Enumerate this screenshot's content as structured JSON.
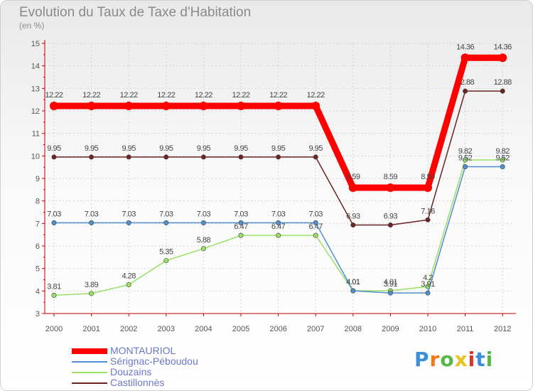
{
  "title": "Evolution du Taux de Taxe d'Habitation",
  "subtitle": "(en %)",
  "logo_text": "Proxiti",
  "chart_data": {
    "type": "line",
    "title": "Evolution du Taux de Taxe d'Habitation",
    "ylabel": "(en %)",
    "xlabel": "",
    "x": [
      "2000",
      "2001",
      "2002",
      "2003",
      "2004",
      "2005",
      "2006",
      "2007",
      "2008",
      "2009",
      "2010",
      "2011",
      "2012"
    ],
    "ylim": [
      3,
      15
    ],
    "yticks": [
      "3",
      "4",
      "5",
      "6",
      "7",
      "8",
      "9",
      "10",
      "11",
      "12",
      "13",
      "14",
      "15"
    ],
    "series": [
      {
        "name": "MONTAURIOL",
        "color": "#ff0000",
        "values": [
          12.22,
          12.22,
          12.22,
          12.22,
          12.22,
          12.22,
          12.22,
          12.22,
          8.59,
          8.59,
          8.59,
          14.36,
          14.36
        ],
        "labels": [
          "12.22",
          "12.22",
          "12.22",
          "12.22",
          "12.22",
          "12.22",
          "12.22",
          "12.22",
          "8.59",
          "8.59",
          "8.59",
          "14.36",
          "14.36"
        ]
      },
      {
        "name": "Sérignac-Péboudou",
        "color": "#4f8fcd",
        "values": [
          7.03,
          7.03,
          7.03,
          7.03,
          7.03,
          7.03,
          7.03,
          7.03,
          4.01,
          3.91,
          3.91,
          9.52,
          9.52
        ],
        "labels": [
          "7.03",
          "7.03",
          "7.03",
          "7.03",
          "7.03",
          "7.03",
          "7.03",
          "7.03",
          "4.01",
          "3.91",
          "3.91",
          "9.52",
          "9.52"
        ]
      },
      {
        "name": "Douzains",
        "color": "#99e066",
        "values": [
          3.81,
          3.89,
          4.28,
          5.35,
          5.88,
          6.47,
          6.47,
          6.47,
          4.01,
          4.01,
          4.2,
          9.82,
          9.82
        ],
        "labels": [
          "3.81",
          "3.89",
          "4.28",
          "5.35",
          "5.88",
          "6.47",
          "6.47",
          "6.47",
          "4.01",
          "4.01",
          "4.2",
          "9.82",
          "9.82"
        ]
      },
      {
        "name": "Castillonnès",
        "color": "#6b2424",
        "values": [
          9.95,
          9.95,
          9.95,
          9.95,
          9.95,
          9.95,
          9.95,
          9.95,
          6.93,
          6.93,
          7.16,
          12.88,
          12.88
        ],
        "labels": [
          "9.95",
          "9.95",
          "9.95",
          "9.95",
          "9.95",
          "9.95",
          "9.95",
          "9.95",
          "6.93",
          "6.93",
          "7.16",
          "12.88",
          "12.88"
        ]
      }
    ]
  }
}
